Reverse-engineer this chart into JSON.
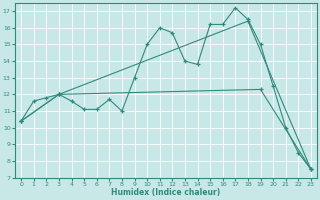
{
  "xlabel": "Humidex (Indice chaleur)",
  "ylabel": "",
  "line_color": "#2e8b7a",
  "bg_color": "#c8e8e8",
  "grid_color": "#b0d8d8",
  "xlim": [
    -0.5,
    23.5
  ],
  "ylim": [
    7,
    17.5
  ],
  "yticks": [
    7,
    8,
    9,
    10,
    11,
    12,
    13,
    14,
    15,
    16,
    17
  ],
  "xticks": [
    0,
    1,
    2,
    3,
    4,
    5,
    6,
    7,
    8,
    9,
    10,
    11,
    12,
    13,
    14,
    15,
    16,
    17,
    18,
    19,
    20,
    21,
    22,
    23
  ],
  "line1_x": [
    0,
    1,
    2,
    3,
    4,
    5,
    6,
    7,
    8,
    9,
    10,
    11,
    12,
    13,
    14,
    15,
    16,
    17,
    18,
    19,
    20,
    21,
    22,
    23
  ],
  "line1_y": [
    10.4,
    11.6,
    11.8,
    12.0,
    11.6,
    11.1,
    11.1,
    11.7,
    11.0,
    13.0,
    15.0,
    16.0,
    15.7,
    14.0,
    13.8,
    16.2,
    16.2,
    17.2,
    16.5,
    15.0,
    12.5,
    10.0,
    8.5,
    7.5
  ],
  "line2_x": [
    0,
    3,
    18,
    23
  ],
  "line2_y": [
    10.4,
    12.0,
    16.4,
    7.5
  ],
  "line3_x": [
    0,
    3,
    19,
    23
  ],
  "line3_y": [
    10.4,
    12.0,
    12.3,
    7.5
  ]
}
